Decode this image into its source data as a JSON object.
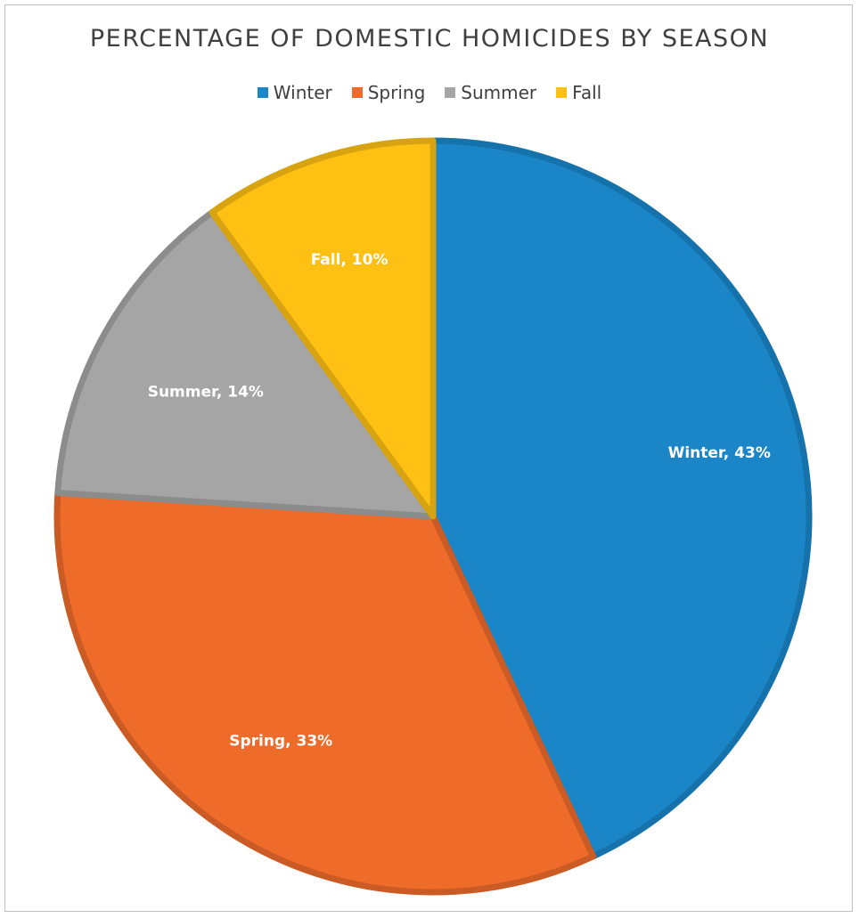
{
  "chart_data": {
    "type": "pie",
    "title": "PERCENTAGE OF DOMESTIC HOMICIDES BY SEASON",
    "categories": [
      "Winter",
      "Spring",
      "Summer",
      "Fall"
    ],
    "values": [
      43,
      33,
      14,
      10
    ],
    "data_labels": [
      "Winter, 43%",
      "Spring, 33%",
      "Summer, 14%",
      "Fall, 10%"
    ],
    "colors": [
      "#1a86c8",
      "#ee6b2a",
      "#a5a5a5",
      "#fdc013"
    ],
    "legend_position": "top",
    "start_angle": "12 o'clock, clockwise"
  }
}
